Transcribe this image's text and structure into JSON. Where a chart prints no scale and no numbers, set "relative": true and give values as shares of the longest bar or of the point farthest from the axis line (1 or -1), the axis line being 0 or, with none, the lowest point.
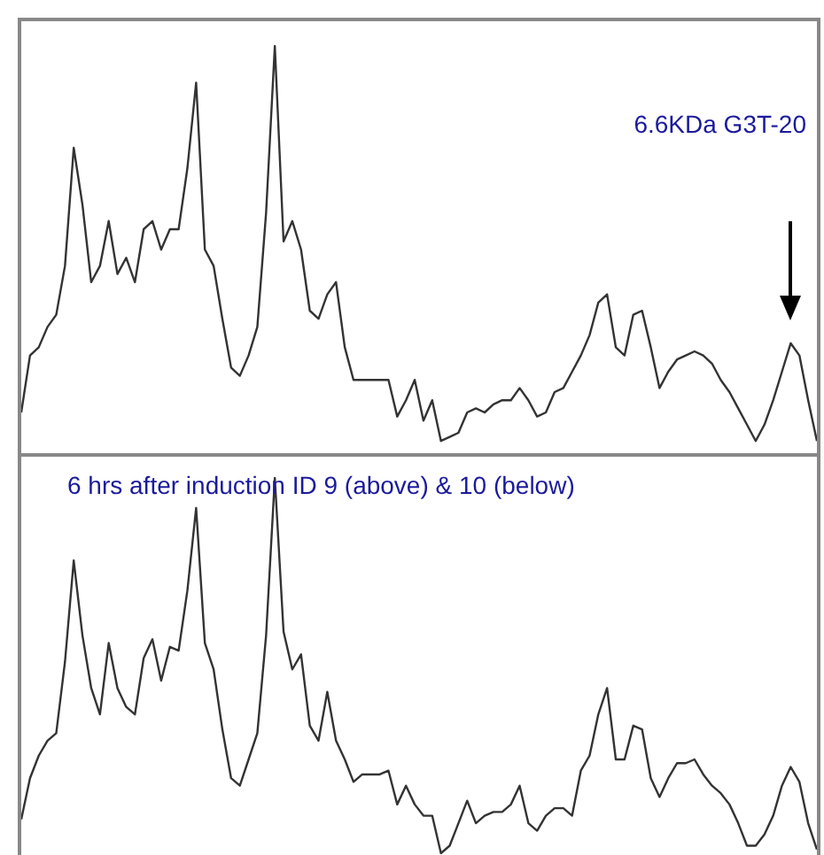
{
  "chart_data": [
    {
      "type": "line",
      "relative": true,
      "color": "#333333",
      "annotations": [
        "6.6KDa  G3T-20"
      ],
      "categories": [
        null,
        null,
        null,
        null,
        null,
        null,
        null,
        null,
        null,
        null,
        null,
        null,
        null,
        null,
        null,
        null,
        null,
        null,
        null,
        null,
        null,
        null,
        null,
        null,
        null,
        null,
        null,
        null,
        null,
        null,
        null,
        null,
        null,
        null,
        null,
        null,
        null,
        null,
        null,
        null,
        null,
        null,
        null,
        null,
        null,
        null,
        null,
        null,
        null,
        null,
        null,
        null,
        null,
        null,
        null,
        null,
        null,
        null,
        null,
        null,
        null,
        null,
        null,
        null,
        null,
        null,
        null,
        null,
        null,
        null,
        null,
        null,
        null,
        null,
        null,
        null,
        null,
        null,
        null,
        null,
        null,
        null,
        null,
        null,
        null,
        null,
        null,
        null,
        null,
        null,
        null,
        null
      ],
      "values": [
        0.1,
        0.24,
        0.26,
        0.31,
        0.34,
        0.46,
        0.75,
        0.61,
        0.42,
        0.46,
        0.57,
        0.44,
        0.48,
        0.42,
        0.55,
        0.57,
        0.5,
        0.55,
        0.55,
        0.7,
        0.91,
        0.5,
        0.46,
        0.33,
        0.21,
        0.19,
        0.24,
        0.31,
        0.59,
        1.0,
        0.52,
        0.57,
        0.5,
        0.35,
        0.33,
        0.39,
        0.42,
        0.26,
        0.18,
        0.18,
        0.18,
        0.18,
        0.18,
        0.09,
        0.13,
        0.18,
        0.08,
        0.13,
        0.03,
        0.04,
        0.05,
        0.1,
        0.11,
        0.1,
        0.12,
        0.13,
        0.13,
        0.16,
        0.13,
        0.09,
        0.1,
        0.15,
        0.16,
        0.2,
        0.24,
        0.29,
        0.37,
        0.39,
        0.26,
        0.24,
        0.34,
        0.35,
        0.26,
        0.16,
        0.2,
        0.23,
        0.24,
        0.25,
        0.24,
        0.22,
        0.18,
        0.15,
        0.11,
        0.07,
        0.03,
        0.07,
        0.13,
        0.2,
        0.27,
        0.24,
        0.13,
        0.03
      ]
    },
    {
      "type": "line",
      "relative": true,
      "color": "#333333",
      "annotations": [
        "6 hrs  after induction ID 9 (above) & 10 (below)"
      ],
      "categories": [
        null,
        null,
        null,
        null,
        null,
        null,
        null,
        null,
        null,
        null,
        null,
        null,
        null,
        null,
        null,
        null,
        null,
        null,
        null,
        null,
        null,
        null,
        null,
        null,
        null,
        null,
        null,
        null,
        null,
        null,
        null,
        null,
        null,
        null,
        null,
        null,
        null,
        null,
        null,
        null,
        null,
        null,
        null,
        null,
        null,
        null,
        null,
        null,
        null,
        null,
        null,
        null,
        null,
        null,
        null,
        null,
        null,
        null,
        null,
        null,
        null,
        null,
        null,
        null,
        null,
        null,
        null,
        null,
        null,
        null,
        null,
        null,
        null,
        null,
        null,
        null,
        null,
        null,
        null,
        null,
        null,
        null,
        null,
        null,
        null,
        null,
        null,
        null,
        null,
        null,
        null,
        null
      ],
      "values": [
        0.09,
        0.2,
        0.26,
        0.3,
        0.32,
        0.51,
        0.78,
        0.58,
        0.44,
        0.37,
        0.56,
        0.44,
        0.39,
        0.37,
        0.52,
        0.57,
        0.46,
        0.55,
        0.54,
        0.7,
        0.92,
        0.56,
        0.49,
        0.33,
        0.2,
        0.18,
        0.25,
        0.32,
        0.58,
        1.0,
        0.59,
        0.49,
        0.53,
        0.34,
        0.3,
        0.43,
        0.3,
        0.25,
        0.19,
        0.21,
        0.21,
        0.21,
        0.22,
        0.13,
        0.18,
        0.13,
        0.1,
        0.1,
        0.0,
        0.02,
        0.08,
        0.14,
        0.08,
        0.1,
        0.11,
        0.11,
        0.13,
        0.18,
        0.08,
        0.06,
        0.1,
        0.12,
        0.12,
        0.1,
        0.22,
        0.26,
        0.37,
        0.44,
        0.25,
        0.25,
        0.34,
        0.33,
        0.2,
        0.15,
        0.2,
        0.24,
        0.24,
        0.25,
        0.21,
        0.18,
        0.16,
        0.13,
        0.08,
        0.02,
        0.02,
        0.05,
        0.1,
        0.18,
        0.23,
        0.19,
        0.08,
        0.01
      ]
    }
  ]
}
